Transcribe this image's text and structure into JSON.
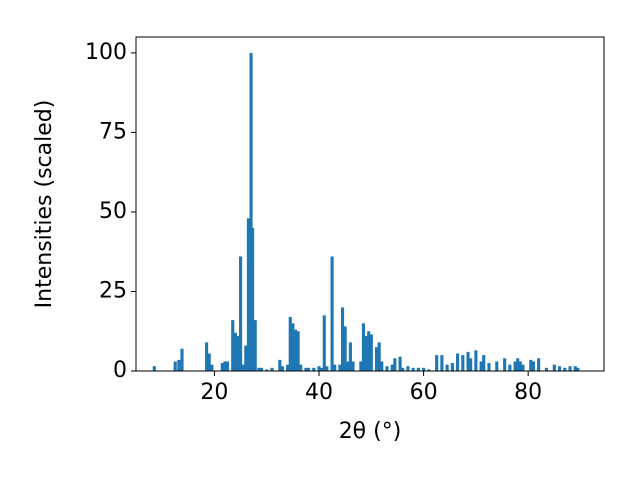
{
  "chart_data": {
    "type": "bar",
    "xlabel": "2θ (°)",
    "ylabel": "Intensities (scaled)",
    "color": "#1f77b4",
    "x": [
      8.5,
      12.5,
      13.2,
      13.8,
      18.5,
      19,
      19.5,
      21.5,
      22,
      22.5,
      23.5,
      24,
      24.5,
      25,
      25.5,
      26,
      26.5,
      27,
      27.3,
      27.8,
      28.5,
      29,
      30,
      31,
      32.5,
      33,
      34,
      34.5,
      35,
      35.5,
      36,
      36.5,
      37.5,
      38,
      39,
      40,
      40.5,
      41,
      41.5,
      42.5,
      43,
      44,
      44.5,
      45,
      45.5,
      46,
      46.5,
      48,
      48.5,
      49,
      49.5,
      50,
      51,
      51.5,
      52,
      53,
      54,
      54.5,
      55.5,
      56,
      57,
      58,
      59,
      60,
      61,
      62.5,
      63.5,
      64.5,
      65.5,
      66.5,
      67.5,
      68.5,
      69,
      70,
      71,
      71.5,
      72.5,
      74,
      75.5,
      76.5,
      77.5,
      78,
      78.5,
      79,
      80.5,
      81,
      82,
      83.5,
      85,
      86,
      87,
      88,
      89,
      89.5
    ],
    "values": [
      1.5,
      3,
      3.5,
      7,
      9,
      5.5,
      2,
      2.5,
      3,
      3,
      16,
      12,
      11,
      36,
      2,
      8,
      48,
      100,
      45,
      16,
      1,
      1,
      0.5,
      1,
      3.5,
      1.5,
      2,
      17,
      15,
      13,
      12.5,
      2,
      1,
      1,
      1,
      1.5,
      1,
      17.5,
      1.5,
      36,
      2,
      2,
      20,
      14,
      3,
      9,
      3,
      3,
      15,
      11,
      12.5,
      11.5,
      7.5,
      9,
      3,
      1.5,
      2,
      4,
      4.5,
      1,
      1.5,
      1,
      1,
      1,
      0.5,
      5,
      5,
      2,
      2.5,
      5.5,
      5,
      6,
      4,
      6.5,
      3,
      5,
      2.5,
      3,
      4,
      2,
      3,
      4,
      3,
      2,
      3.5,
      3,
      4,
      1,
      2,
      1.5,
      1,
      1.5,
      1.5,
      1
    ],
    "xlim": [
      5,
      94.5
    ],
    "ylim": [
      0,
      105
    ],
    "xticks": [
      20,
      40,
      60,
      80
    ],
    "yticks": [
      0,
      25,
      50,
      75,
      100
    ]
  }
}
